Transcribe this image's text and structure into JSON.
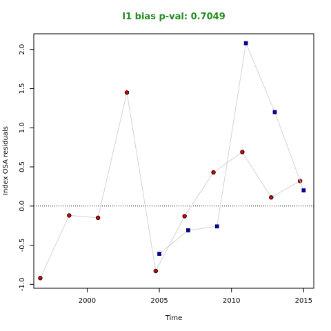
{
  "chart_data": {
    "type": "scatter",
    "title": "I1 bias p-val: 0.7049",
    "xlabel": "Time",
    "ylabel": "Index OSA residuals",
    "xlim": [
      1996.3,
      2015.7
    ],
    "ylim": [
      -1.05,
      2.2
    ],
    "xticks": [
      2000,
      2005,
      2010,
      2015
    ],
    "yticks": [
      -1.0,
      -0.5,
      0.0,
      0.5,
      1.0,
      1.5,
      2.0
    ],
    "reference_line": {
      "y": 0.0,
      "style": "dotted"
    },
    "grid": false,
    "series": [
      {
        "marker": "circle",
        "color": "#CC0000",
        "line_color": "#D3D3D3",
        "points": [
          {
            "x": 1996.75,
            "y": -0.92
          },
          {
            "x": 1998.75,
            "y": -0.12
          },
          {
            "x": 2000.75,
            "y": -0.15
          },
          {
            "x": 2002.75,
            "y": 1.45
          },
          {
            "x": 2004.75,
            "y": -0.83
          },
          {
            "x": 2006.75,
            "y": -0.13
          },
          {
            "x": 2008.75,
            "y": 0.43
          },
          {
            "x": 2010.75,
            "y": 0.69
          },
          {
            "x": 2012.75,
            "y": 0.11
          },
          {
            "x": 2014.75,
            "y": 0.32
          }
        ]
      },
      {
        "marker": "square",
        "color": "#0000AA",
        "line_color": "#D3D3D3",
        "points": [
          {
            "x": 2005.0,
            "y": -0.61
          },
          {
            "x": 2007.0,
            "y": -0.31
          },
          {
            "x": 2009.0,
            "y": -0.26
          },
          {
            "x": 2011.0,
            "y": 2.08
          },
          {
            "x": 2013.0,
            "y": 1.2
          },
          {
            "x": 2015.0,
            "y": 0.2
          }
        ]
      }
    ]
  }
}
